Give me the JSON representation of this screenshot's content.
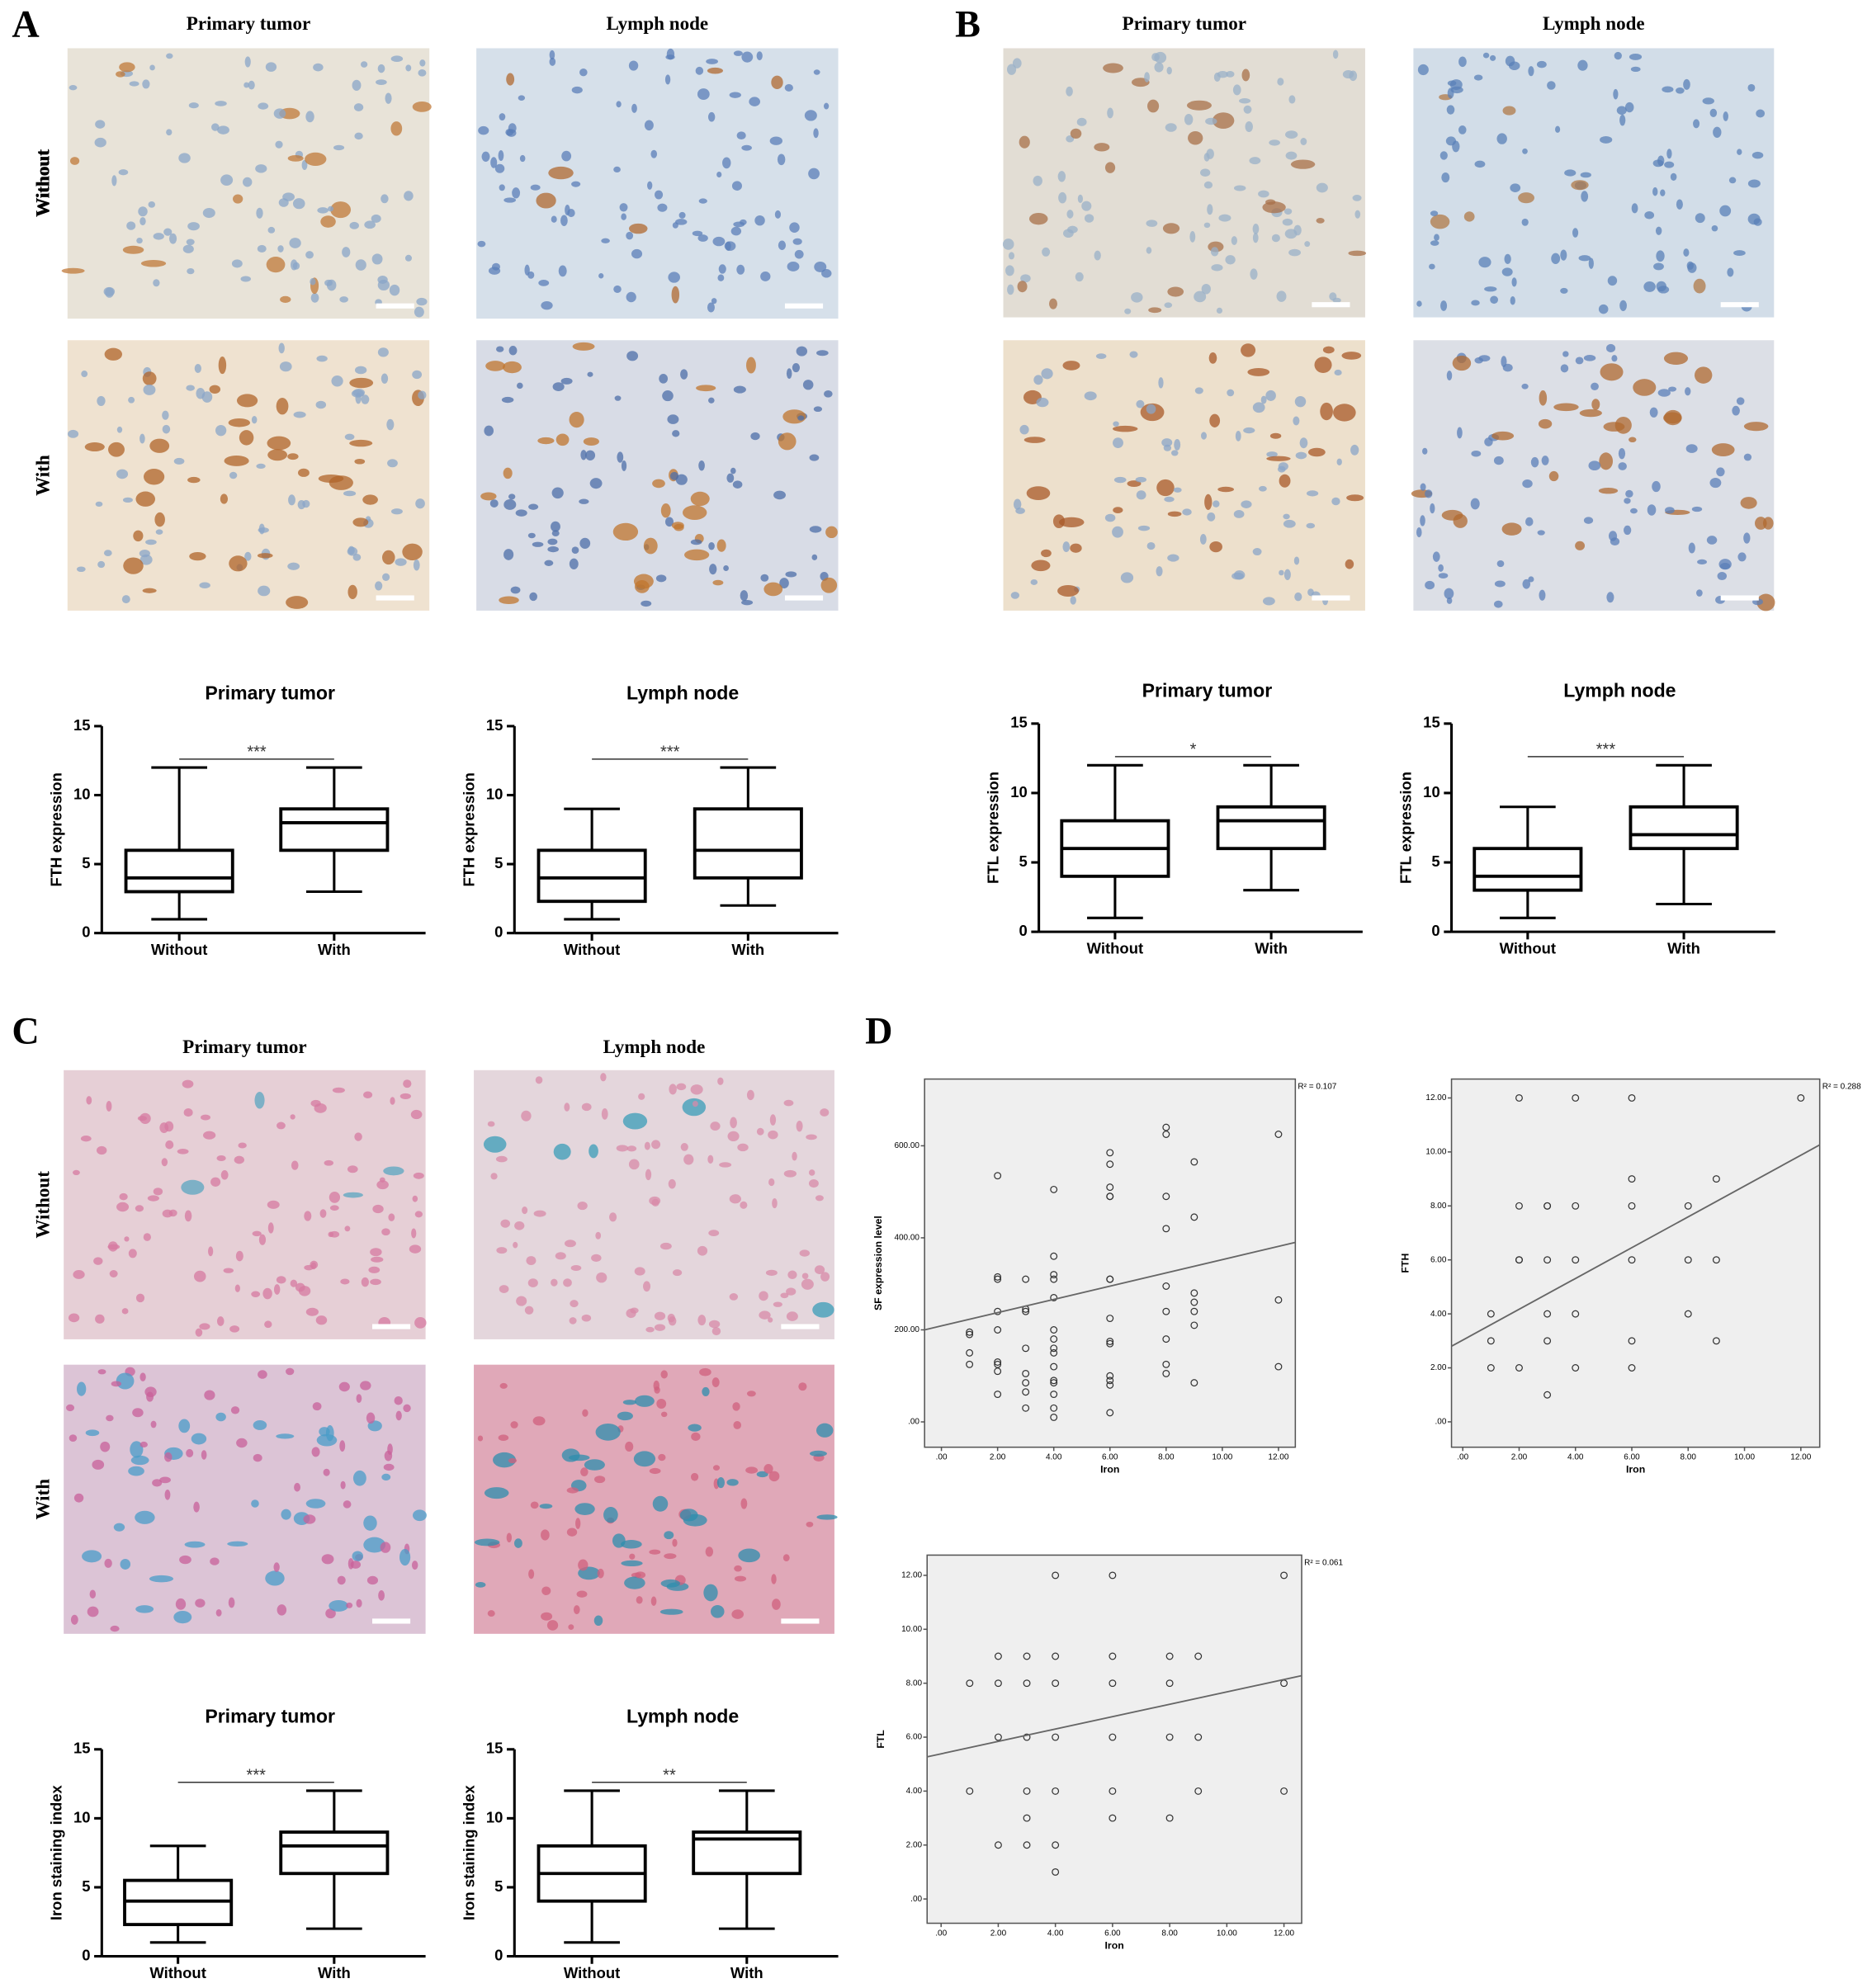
{
  "panels": [
    {
      "label": "A",
      "columns": [
        "Primary tumor",
        "Lymph node"
      ],
      "rows": [
        "Without",
        "With"
      ]
    },
    {
      "label": "B",
      "columns": [
        "Primary tumor",
        "Lymph node"
      ],
      "rows": [
        "Without",
        "With"
      ]
    },
    {
      "label": "C",
      "columns": [
        "Primary tumor",
        "Lymph node"
      ],
      "rows": [
        "Without",
        "With"
      ]
    },
    {
      "label": "D"
    }
  ],
  "chart_data": [
    {
      "type": "box",
      "title": "Primary tumor",
      "ylabel": "FTH expression",
      "categories": [
        "Without",
        "With"
      ],
      "min": [
        1,
        3
      ],
      "q1": [
        3,
        6
      ],
      "median": [
        4,
        8
      ],
      "q3": [
        6,
        9
      ],
      "max": [
        12,
        12
      ],
      "significance": "***",
      "ylim": [
        0,
        15
      ],
      "yticks": [
        0,
        5,
        10,
        15
      ]
    },
    {
      "type": "box",
      "title": "Lymph node",
      "ylabel": "FTH expression",
      "categories": [
        "Without",
        "With"
      ],
      "min": [
        1,
        2
      ],
      "q1": [
        2.3,
        4
      ],
      "median": [
        4,
        6
      ],
      "q3": [
        6,
        9
      ],
      "max": [
        9,
        12
      ],
      "significance": "***",
      "ylim": [
        0,
        15
      ],
      "yticks": [
        0,
        5,
        10,
        15
      ]
    },
    {
      "type": "box",
      "title": "Primary tumor",
      "ylabel": "FTL expression",
      "categories": [
        "Without",
        "With"
      ],
      "min": [
        1,
        3
      ],
      "q1": [
        4,
        6
      ],
      "median": [
        6,
        8
      ],
      "q3": [
        8,
        9
      ],
      "max": [
        12,
        12
      ],
      "significance": "*",
      "ylim": [
        0,
        15
      ],
      "yticks": [
        0,
        5,
        10,
        15
      ]
    },
    {
      "type": "box",
      "title": "Lymph node",
      "ylabel": "FTL expression",
      "categories": [
        "Without",
        "With"
      ],
      "min": [
        1,
        2
      ],
      "q1": [
        3,
        6
      ],
      "median": [
        4,
        7
      ],
      "q3": [
        6,
        9
      ],
      "max": [
        9,
        12
      ],
      "significance": "***",
      "ylim": [
        0,
        15
      ],
      "yticks": [
        0,
        5,
        10,
        15
      ]
    },
    {
      "type": "box",
      "title": "Primary tumor",
      "ylabel": "Iron staining index",
      "categories": [
        "Without",
        "With"
      ],
      "min": [
        1,
        2
      ],
      "q1": [
        2.3,
        6
      ],
      "median": [
        4,
        8
      ],
      "q3": [
        5.5,
        9
      ],
      "max": [
        8,
        12
      ],
      "significance": "***",
      "ylim": [
        0,
        15
      ],
      "yticks": [
        0,
        5,
        10,
        15
      ]
    },
    {
      "type": "box",
      "title": "Lymph node",
      "ylabel": "Iron staining index",
      "categories": [
        "Without",
        "With"
      ],
      "min": [
        1,
        2
      ],
      "q1": [
        4,
        6
      ],
      "median": [
        6,
        8.5
      ],
      "q3": [
        8,
        9
      ],
      "max": [
        12,
        12
      ],
      "significance": "**",
      "ylim": [
        0,
        15
      ],
      "yticks": [
        0,
        5,
        10,
        15
      ]
    },
    {
      "type": "scatter",
      "xlabel": "Iron",
      "ylabel": "SF expression level",
      "annotation": "R² = 0.107",
      "x": [
        1,
        1,
        1,
        1,
        2,
        2,
        2,
        2,
        2,
        2,
        2,
        2,
        2,
        3,
        3,
        3,
        3,
        3,
        3,
        3,
        3,
        4,
        4,
        4,
        4,
        4,
        4,
        4,
        4,
        4,
        4,
        4,
        4,
        4,
        4,
        4,
        6,
        6,
        6,
        6,
        6,
        6,
        6,
        6,
        6,
        6,
        6,
        6,
        6,
        6,
        8,
        8,
        8,
        8,
        8,
        8,
        8,
        8,
        8,
        9,
        9,
        9,
        9,
        9,
        9,
        9,
        12,
        12,
        12
      ],
      "y": [
        195,
        190,
        150,
        125,
        535,
        315,
        310,
        240,
        200,
        130,
        125,
        110,
        60,
        310,
        245,
        240,
        160,
        105,
        85,
        65,
        30,
        505,
        360,
        320,
        310,
        270,
        200,
        180,
        160,
        150,
        120,
        90,
        85,
        60,
        30,
        10,
        585,
        560,
        510,
        490,
        490,
        310,
        310,
        225,
        175,
        170,
        100,
        90,
        80,
        20,
        640,
        625,
        490,
        420,
        295,
        240,
        180,
        125,
        105,
        565,
        445,
        280,
        260,
        240,
        210,
        85,
        625,
        265,
        120
      ],
      "fit": {
        "x": [
          -0.6,
          12.6
        ],
        "y": [
          200,
          390
        ]
      },
      "xlim": [
        -0.6,
        12.6
      ],
      "ylim": [
        -55,
        745
      ],
      "xticks": [
        {
          "value": 0,
          "label": ".00"
        },
        {
          "value": 2,
          "label": "2.00"
        },
        {
          "value": 4,
          "label": "4.00"
        },
        {
          "value": 6,
          "label": "6.00"
        },
        {
          "value": 8,
          "label": "8.00"
        },
        {
          "value": 10,
          "label": "10.00"
        },
        {
          "value": 12,
          "label": "12.00"
        }
      ],
      "yticks": [
        {
          "value": 0,
          "label": ".00"
        },
        {
          "value": 200,
          "label": "200.00"
        },
        {
          "value": 400,
          "label": "400.00"
        },
        {
          "value": 600,
          "label": "600.00"
        }
      ]
    },
    {
      "type": "scatter",
      "xlabel": "Iron",
      "ylabel": "FTH",
      "annotation": "R² = 0.288",
      "x": [
        1,
        1,
        1,
        2,
        2,
        2,
        2,
        2,
        3,
        3,
        3,
        3,
        3,
        3,
        4,
        4,
        4,
        4,
        4,
        6,
        6,
        6,
        6,
        6,
        6,
        8,
        8,
        8,
        9,
        9,
        9,
        12
      ],
      "y": [
        2,
        3,
        4,
        12,
        8,
        6,
        6,
        2,
        8,
        8,
        6,
        4,
        3,
        1,
        12,
        8,
        6,
        4,
        2,
        12,
        9,
        8,
        6,
        3,
        2,
        8,
        6,
        4,
        9,
        6,
        3,
        12
      ],
      "fit": {
        "x": [
          -0.4,
          12.67
        ],
        "y": [
          2.8,
          10.26
        ]
      },
      "xlim": [
        -0.4,
        12.67
      ],
      "ylim": [
        -0.94,
        12.7
      ],
      "xticks": [
        {
          "value": 0,
          "label": ".00"
        },
        {
          "value": 2,
          "label": "2.00"
        },
        {
          "value": 4,
          "label": "4.00"
        },
        {
          "value": 6,
          "label": "6.00"
        },
        {
          "value": 8,
          "label": "8.00"
        },
        {
          "value": 10,
          "label": "10.00"
        },
        {
          "value": 12,
          "label": "12.00"
        }
      ],
      "yticks": [
        {
          "value": 0,
          "label": ".00"
        },
        {
          "value": 2,
          "label": "2.00"
        },
        {
          "value": 4,
          "label": "4.00"
        },
        {
          "value": 6,
          "label": "6.00"
        },
        {
          "value": 8,
          "label": "8.00"
        },
        {
          "value": 10,
          "label": "10.00"
        },
        {
          "value": 12,
          "label": "12.00"
        }
      ]
    },
    {
      "type": "scatter",
      "xlabel": "Iron",
      "ylabel": "FTL",
      "annotation": "R² = 0.061",
      "x": [
        1,
        1,
        2,
        2,
        2,
        2,
        3,
        3,
        3,
        3,
        3,
        3,
        4,
        4,
        4,
        4,
        4,
        4,
        4,
        6,
        6,
        6,
        6,
        6,
        6,
        8,
        8,
        8,
        8,
        9,
        9,
        9,
        12,
        12,
        12
      ],
      "y": [
        8,
        4,
        9,
        8,
        6,
        2,
        9,
        8,
        6,
        4,
        3,
        2,
        12,
        9,
        8,
        6,
        4,
        2,
        1,
        12,
        9,
        8,
        6,
        4,
        3,
        9,
        8,
        6,
        3,
        9,
        6,
        4,
        12,
        8,
        4
      ],
      "fit": {
        "x": [
          -0.49,
          12.62
        ],
        "y": [
          5.27,
          8.28
        ]
      },
      "xlim": [
        -0.49,
        12.62
      ],
      "ylim": [
        -0.9,
        12.75
      ],
      "xticks": [
        {
          "value": 0,
          "label": ".00"
        },
        {
          "value": 2,
          "label": "2.00"
        },
        {
          "value": 4,
          "label": "4.00"
        },
        {
          "value": 6,
          "label": "6.00"
        },
        {
          "value": 8,
          "label": "8.00"
        },
        {
          "value": 10,
          "label": "10.00"
        },
        {
          "value": 12,
          "label": "12.00"
        }
      ],
      "yticks": [
        {
          "value": 0,
          "label": ".00"
        },
        {
          "value": 2,
          "label": "2.00"
        },
        {
          "value": 4,
          "label": "4.00"
        },
        {
          "value": 6,
          "label": "6.00"
        },
        {
          "value": 8,
          "label": "8.00"
        },
        {
          "value": 10,
          "label": "10.00"
        },
        {
          "value": 12,
          "label": "12.00"
        }
      ]
    }
  ]
}
